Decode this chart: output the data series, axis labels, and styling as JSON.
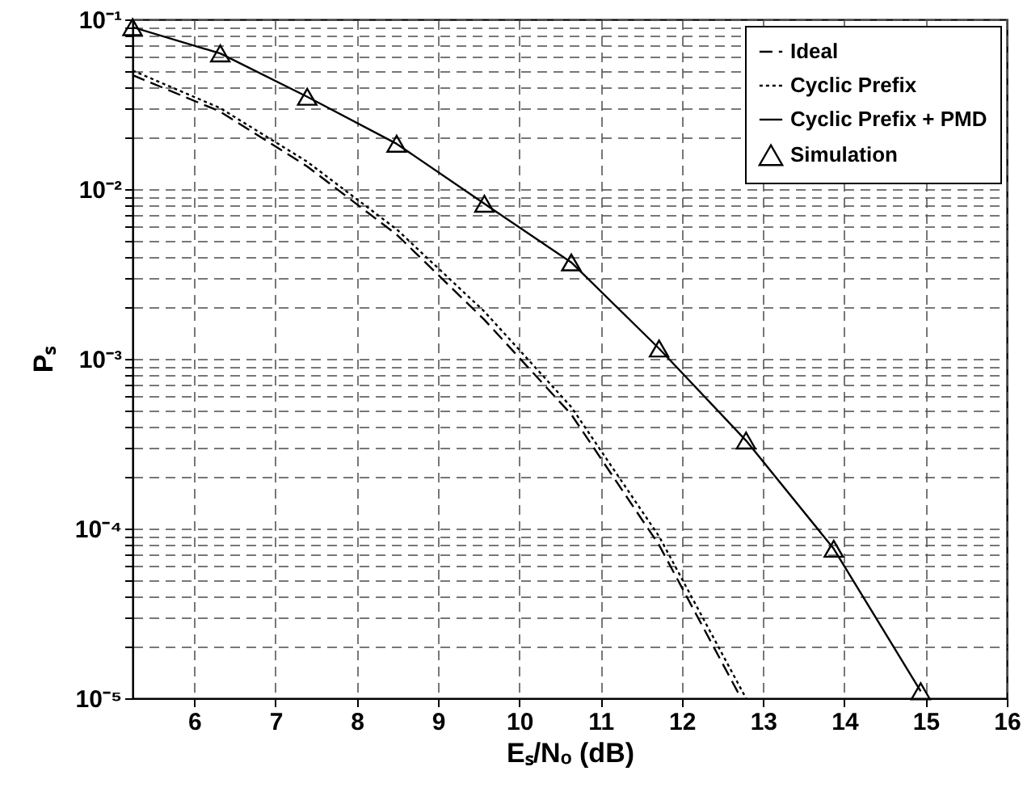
{
  "chart_data": {
    "type": "line",
    "xlabel": "Eₛ/Nₒ (dB)",
    "ylabel": "Pₛ",
    "log": "y",
    "grid": true,
    "legend": "top right",
    "xlim": [
      5.24,
      16
    ],
    "xticks": [
      6,
      7,
      8,
      9,
      10,
      11,
      12,
      13,
      14,
      15,
      16
    ],
    "ylim": [
      1e-05,
      0.1
    ],
    "yticks": [
      {
        "value": 1e-05,
        "label": "10⁻⁵"
      },
      {
        "value": 2e-05,
        "label": null
      },
      {
        "value": 3e-05,
        "label": null
      },
      {
        "value": 4e-05,
        "label": null
      },
      {
        "value": 5e-05,
        "label": null
      },
      {
        "value": 6e-05,
        "label": null
      },
      {
        "value": 7e-05,
        "label": null
      },
      {
        "value": 8e-05,
        "label": null
      },
      {
        "value": 9e-05,
        "label": null
      },
      {
        "value": 0.0001,
        "label": "10⁻⁴"
      },
      {
        "value": 0.0002,
        "label": null
      },
      {
        "value": 0.0003,
        "label": null
      },
      {
        "value": 0.0004,
        "label": null
      },
      {
        "value": 0.0005,
        "label": null
      },
      {
        "value": 0.0006,
        "label": null
      },
      {
        "value": 0.0007,
        "label": null
      },
      {
        "value": 0.0008,
        "label": null
      },
      {
        "value": 0.0009,
        "label": null
      },
      {
        "value": 0.001,
        "label": "10⁻³"
      },
      {
        "value": 0.002,
        "label": null
      },
      {
        "value": 0.003,
        "label": null
      },
      {
        "value": 0.004,
        "label": null
      },
      {
        "value": 0.005,
        "label": null
      },
      {
        "value": 0.006,
        "label": null
      },
      {
        "value": 0.007,
        "label": null
      },
      {
        "value": 0.008,
        "label": null
      },
      {
        "value": 0.009,
        "label": null
      },
      {
        "value": 0.01,
        "label": "10⁻²"
      },
      {
        "value": 0.02,
        "label": null
      },
      {
        "value": 0.03,
        "label": null
      },
      {
        "value": 0.04,
        "label": null
      },
      {
        "value": 0.05,
        "label": null
      },
      {
        "value": 0.06,
        "label": null
      },
      {
        "value": 0.07,
        "label": null
      },
      {
        "value": 0.08,
        "label": null
      },
      {
        "value": 0.09,
        "label": null
      },
      {
        "value": 0.1,
        "label": "10⁻¹"
      }
    ],
    "series": [
      {
        "name": "Ideal",
        "color": "#000000",
        "line_style": "dashed",
        "marker": "none",
        "x": [
          5.24,
          6.32,
          7.39,
          8.49,
          9.57,
          10.64,
          11.72,
          12.73
        ],
        "values": [
          0.047,
          0.0286,
          0.0136,
          0.0054,
          0.0017,
          0.00047,
          8e-05,
          1e-05
        ]
      },
      {
        "name": "Cyclic Prefix",
        "color": "#000000",
        "line_style": "dotted",
        "marker": "none",
        "x": [
          5.24,
          6.32,
          7.39,
          8.49,
          9.57,
          10.64,
          11.72,
          12.79
        ],
        "values": [
          0.05,
          0.03,
          0.0145,
          0.0058,
          0.0019,
          0.00052,
          9e-05,
          1e-05
        ]
      },
      {
        "name": "Cyclic Prefix + PMD",
        "color": "#000000",
        "line_style": "solid",
        "marker": "none",
        "x": [
          5.24,
          6.32,
          7.39,
          8.49,
          9.57,
          10.64,
          11.72,
          12.79,
          13.87,
          14.94
        ],
        "values": [
          0.09,
          0.063,
          0.035,
          0.0185,
          0.0082,
          0.0037,
          0.00115,
          0.00033,
          7.6e-05,
          1.1e-05
        ]
      },
      {
        "name": "Simulation",
        "type": "scatter",
        "color": "#000000",
        "marker": "triangle",
        "x": [
          5.24,
          6.32,
          7.39,
          8.49,
          9.57,
          10.64,
          11.72,
          12.79,
          13.87,
          14.94
        ],
        "values": [
          0.09,
          0.063,
          0.035,
          0.0185,
          0.0082,
          0.0037,
          0.00115,
          0.00033,
          7.6e-05,
          1.1e-05
        ]
      }
    ]
  }
}
